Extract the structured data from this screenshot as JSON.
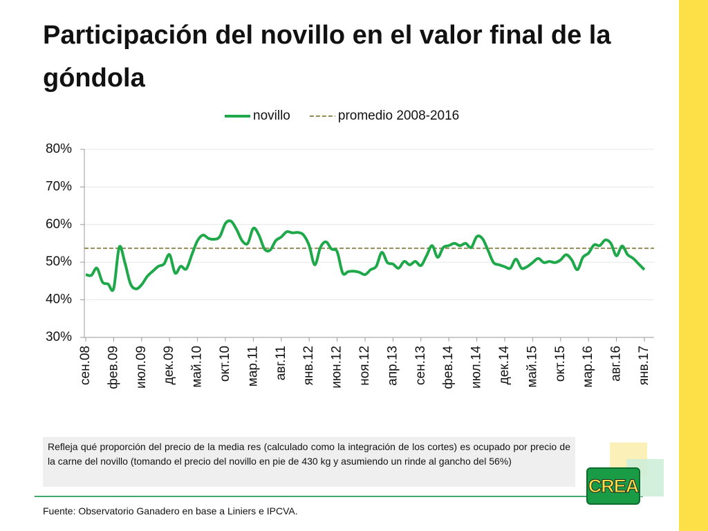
{
  "title": "Participación del novillo en el valor final de la góndola",
  "note": "Refleja qué proporción del precio de la media res (calculado como la integración de los cortes)  es ocupado por precio de la carne del novillo (tomando el precio del novillo en pie de 430 kg y asumiendo un rinde al gancho del 56%)",
  "source": "Fuente: Observatorio Ganadero en base a Liniers e IPCVA.",
  "logo": "CREA",
  "chart_data": {
    "type": "line",
    "categories": [
      "сен.08",
      null,
      null,
      null,
      null,
      "фев.09",
      null,
      null,
      null,
      null,
      "июл.09",
      null,
      null,
      null,
      null,
      "дек.09",
      null,
      null,
      null,
      null,
      "май.10",
      null,
      null,
      null,
      null,
      "окт.10",
      null,
      null,
      null,
      null,
      "мар.11",
      null,
      null,
      null,
      null,
      "авг.11",
      null,
      null,
      null,
      null,
      "янв.12",
      null,
      null,
      null,
      null,
      "июн.12",
      null,
      null,
      null,
      null,
      "ноя.12",
      null,
      null,
      null,
      null,
      "апр.13",
      null,
      null,
      null,
      null,
      "сен.13",
      null,
      null,
      null,
      null,
      "фев.14",
      null,
      null,
      null,
      null,
      "июл.14",
      null,
      null,
      null,
      null,
      "дек.14",
      null,
      null,
      null,
      null,
      "май.15",
      null,
      null,
      null,
      null,
      "окт.15",
      null,
      null,
      null,
      null,
      "мар.16",
      null,
      null,
      null,
      null,
      "авг.16",
      null,
      null,
      null,
      null,
      "янв.17"
    ],
    "series": [
      {
        "name": "novillo",
        "color": "#1fa84a",
        "values": [
          46.7,
          46.5,
          48.4,
          44.7,
          44.2,
          43,
          54,
          49.9,
          44.3,
          42.9,
          44,
          46.2,
          47.6,
          48.9,
          49.5,
          52,
          47.1,
          48.9,
          48.2,
          52,
          55.7,
          57.2,
          56.3,
          56.1,
          56.8,
          60.3,
          60.9,
          58.7,
          55.7,
          55,
          59,
          57.2,
          53.5,
          53.2,
          55.7,
          56.7,
          58.1,
          57.8,
          57.9,
          57.2,
          54.4,
          49.3,
          53.9,
          55.4,
          53.5,
          52.8,
          47.1,
          47.5,
          47.6,
          47.3,
          46.7,
          48,
          48.9,
          52.6,
          49.9,
          49.5,
          48.4,
          50.2,
          49.3,
          50.2,
          49.1,
          51.7,
          54.4,
          51.3,
          53.9,
          54.4,
          55,
          54.4,
          55,
          53.9,
          56.8,
          56.3,
          53.2,
          49.9,
          49.3,
          48.8,
          48.4,
          50.8,
          48.4,
          48.8,
          49.9,
          51,
          49.9,
          50.2,
          49.9,
          50.6,
          52,
          50.6,
          48,
          51.3,
          52.4,
          54.6,
          54.4,
          55.9,
          55,
          51.7,
          54.3,
          52,
          51,
          49.5,
          48
        ]
      }
    ],
    "hlines": [
      {
        "name": "promedio 2008-2016",
        "value": 53.7,
        "color": "#948a54",
        "style": "dashed"
      }
    ],
    "ylim": [
      30,
      80
    ],
    "yticks": [
      {
        "value": 30,
        "label": "30%"
      },
      {
        "value": 40,
        "label": "40%"
      },
      {
        "value": 50,
        "label": "50%"
      },
      {
        "value": 60,
        "label": "60%"
      },
      {
        "value": 70,
        "label": "70%"
      },
      {
        "value": 80,
        "label": "80%"
      }
    ],
    "grid": true,
    "legend": "top"
  }
}
